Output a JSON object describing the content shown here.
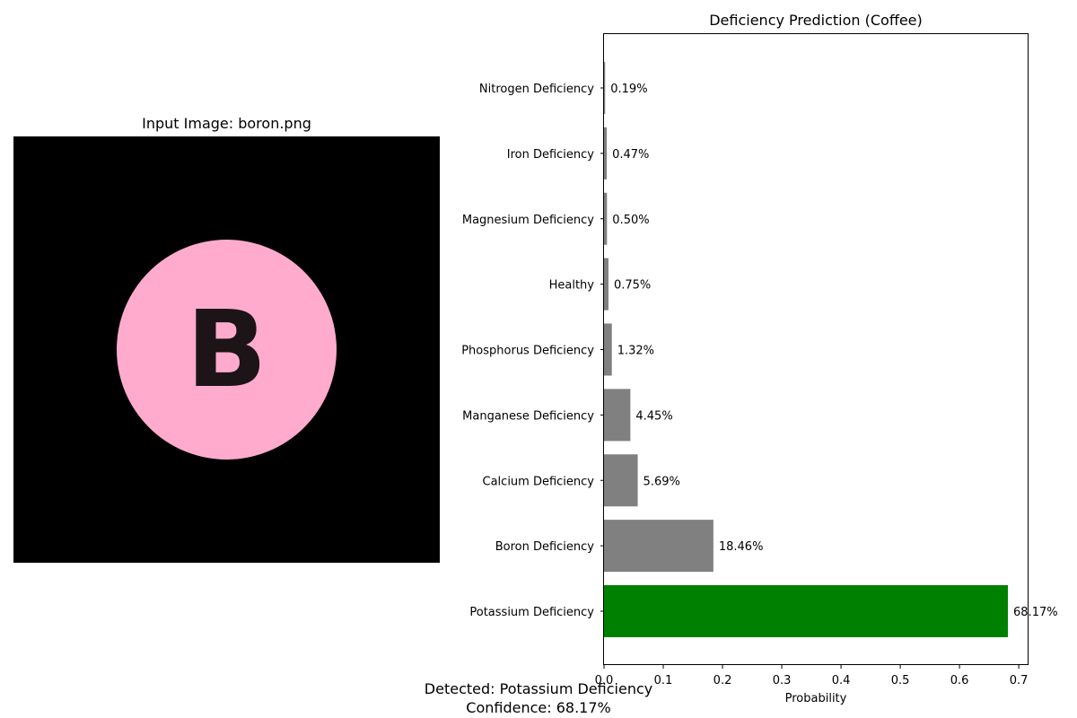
{
  "left_panel": {
    "title": "Input Image: boron.png",
    "image_letter": "B",
    "image_colors": {
      "background": "#000000",
      "circle": "#ffabce",
      "letter": "#1c1416"
    }
  },
  "chart_data": {
    "type": "bar",
    "orientation": "horizontal",
    "title": "Deficiency Prediction (Coffee)",
    "xlabel": "Probability",
    "ylabel": "",
    "xlim": [
      0,
      0.715
    ],
    "xticks": [
      0,
      0.1,
      0.2,
      0.3,
      0.4,
      0.5,
      0.6,
      0.7
    ],
    "xtick_labels": [
      "0.0",
      "0.1",
      "0.2",
      "0.3",
      "0.4",
      "0.5",
      "0.6",
      "0.7"
    ],
    "grid": false,
    "categories": [
      "Potassium Deficiency",
      "Boron Deficiency",
      "Calcium Deficiency",
      "Manganese Deficiency",
      "Phosphorus Deficiency",
      "Healthy",
      "Magnesium Deficiency",
      "Iron Deficiency",
      "Nitrogen Deficiency"
    ],
    "values": [
      0.6817,
      0.1846,
      0.0569,
      0.0445,
      0.0132,
      0.0075,
      0.005,
      0.0047,
      0.0019
    ],
    "value_labels": [
      "68.17%",
      "18.46%",
      "5.69%",
      "4.45%",
      "1.32%",
      "0.75%",
      "0.50%",
      "0.47%",
      "0.19%"
    ],
    "bar_colors": [
      "#008000",
      "#808080",
      "#808080",
      "#808080",
      "#808080",
      "#808080",
      "#808080",
      "#808080",
      "#808080"
    ]
  },
  "result": {
    "detected": "Detected: Potassium Deficiency",
    "confidence": "Confidence: 68.17%"
  }
}
